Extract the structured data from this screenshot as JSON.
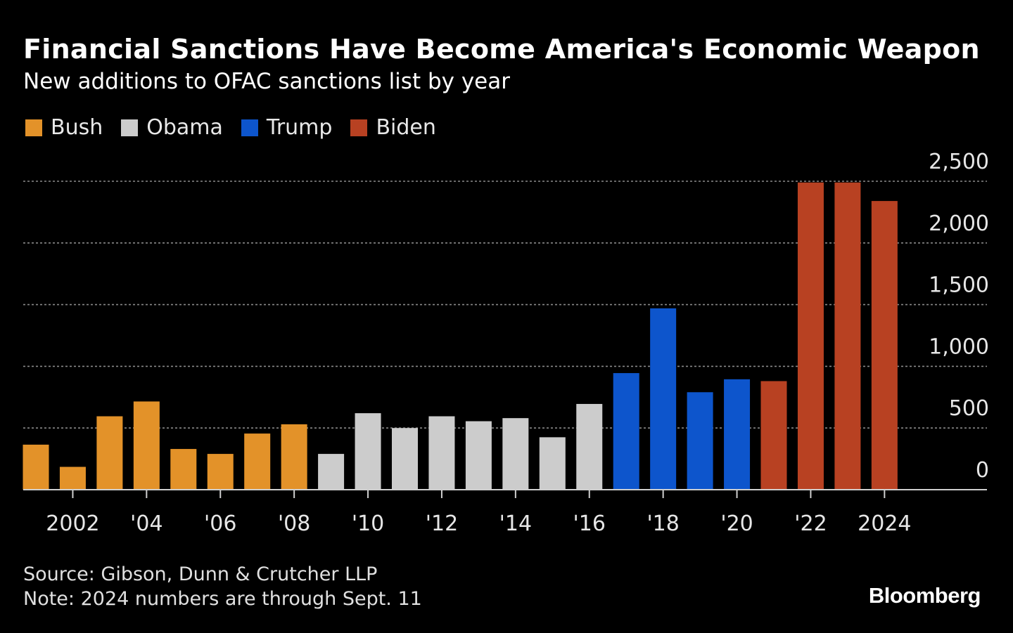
{
  "title": "Financial Sanctions Have Become America's Economic Weapon",
  "subtitle": "New additions to OFAC sanctions list by year",
  "source": "Source: Gibson, Dunn & Crutcher LLP",
  "note": "Note: 2024 numbers are through Sept. 11",
  "logo": "Bloomberg",
  "colors": {
    "background": "#000000",
    "Bush": "#e39229",
    "Obama": "#cccccc",
    "Trump": "#0d55cc",
    "Biden": "#b84122",
    "grid": "#8a8a8a",
    "axis": "#cfcfcf"
  },
  "chart_data": {
    "type": "bar",
    "ylim": [
      0,
      2500
    ],
    "yticks": [
      0,
      500,
      1000,
      1500,
      2000,
      2500
    ],
    "ytick_labels": [
      "0",
      "500",
      "1,000",
      "1,500",
      "2,000",
      "2,500"
    ],
    "xtick_years": [
      2002,
      2004,
      2006,
      2008,
      2010,
      2012,
      2014,
      2016,
      2018,
      2020,
      2022,
      2024
    ],
    "xtick_labels": [
      "2002",
      "'04",
      "'06",
      "'08",
      "'10",
      "'12",
      "'14",
      "'16",
      "'18",
      "'20",
      "'22",
      "2024"
    ],
    "grid": "horizontal dotted",
    "legend_position": "top-left",
    "series": [
      {
        "name": "Bush",
        "x": [
          2001,
          2002,
          2003,
          2004,
          2005,
          2006,
          2007,
          2008
        ],
        "values": [
          365,
          185,
          595,
          715,
          330,
          290,
          455,
          530
        ]
      },
      {
        "name": "Obama",
        "x": [
          2009,
          2010,
          2011,
          2012,
          2013,
          2014,
          2015,
          2016
        ],
        "values": [
          290,
          620,
          500,
          595,
          555,
          580,
          425,
          695
        ]
      },
      {
        "name": "Trump",
        "x": [
          2017,
          2018,
          2019,
          2020
        ],
        "values": [
          945,
          1470,
          790,
          895
        ]
      },
      {
        "name": "Biden",
        "x": [
          2021,
          2022,
          2023,
          2024
        ],
        "values": [
          880,
          2490,
          2490,
          2340
        ]
      }
    ]
  }
}
